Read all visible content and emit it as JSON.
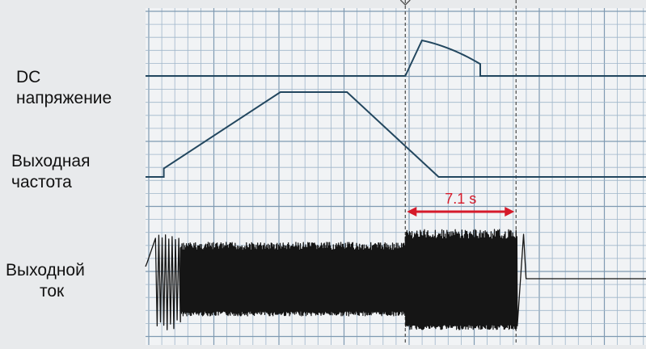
{
  "labels": {
    "dc_voltage": [
      "DC",
      "напряжение"
    ],
    "output_frequency": [
      "Выходная",
      "частота"
    ],
    "output_current": [
      "Выходной",
      "ток"
    ]
  },
  "annotation": {
    "duration": "7.1 s"
  },
  "colors": {
    "background": "#e8eaec",
    "plot_bg": "#f1f3f5",
    "grid_minor": "#9fb6ca",
    "grid_major": "#7f9ab2",
    "trace": "#23475f",
    "current": "#151515",
    "annotation": "#d51a2a",
    "marker": "#555555"
  },
  "chart_data": {
    "type": "line",
    "title": "",
    "xlabel": "",
    "ylabel": "",
    "grid": true,
    "series": [
      {
        "name": "DC напряжение",
        "points": [
          [
            0,
            0
          ],
          [
            31,
            0
          ],
          [
            33,
            3
          ],
          [
            36,
            7
          ],
          [
            40,
            6
          ],
          [
            47,
            4
          ],
          [
            52,
            0
          ],
          [
            60,
            0
          ]
        ]
      },
      {
        "name": "Выходная частота",
        "points": [
          [
            0,
            0
          ],
          [
            2,
            0
          ],
          [
            2,
            1
          ],
          [
            16,
            10
          ],
          [
            24,
            10
          ],
          [
            35,
            0
          ],
          [
            60,
            0
          ]
        ]
      },
      {
        "name": "Выходной ток",
        "points": [
          [
            0,
            3
          ],
          [
            2,
            8
          ],
          [
            3,
            8
          ],
          [
            4,
            8
          ],
          [
            24,
            8
          ],
          [
            24,
            11
          ],
          [
            35,
            11
          ],
          [
            36,
            12
          ],
          [
            36,
            4
          ],
          [
            60,
            4
          ]
        ]
      }
    ]
  }
}
